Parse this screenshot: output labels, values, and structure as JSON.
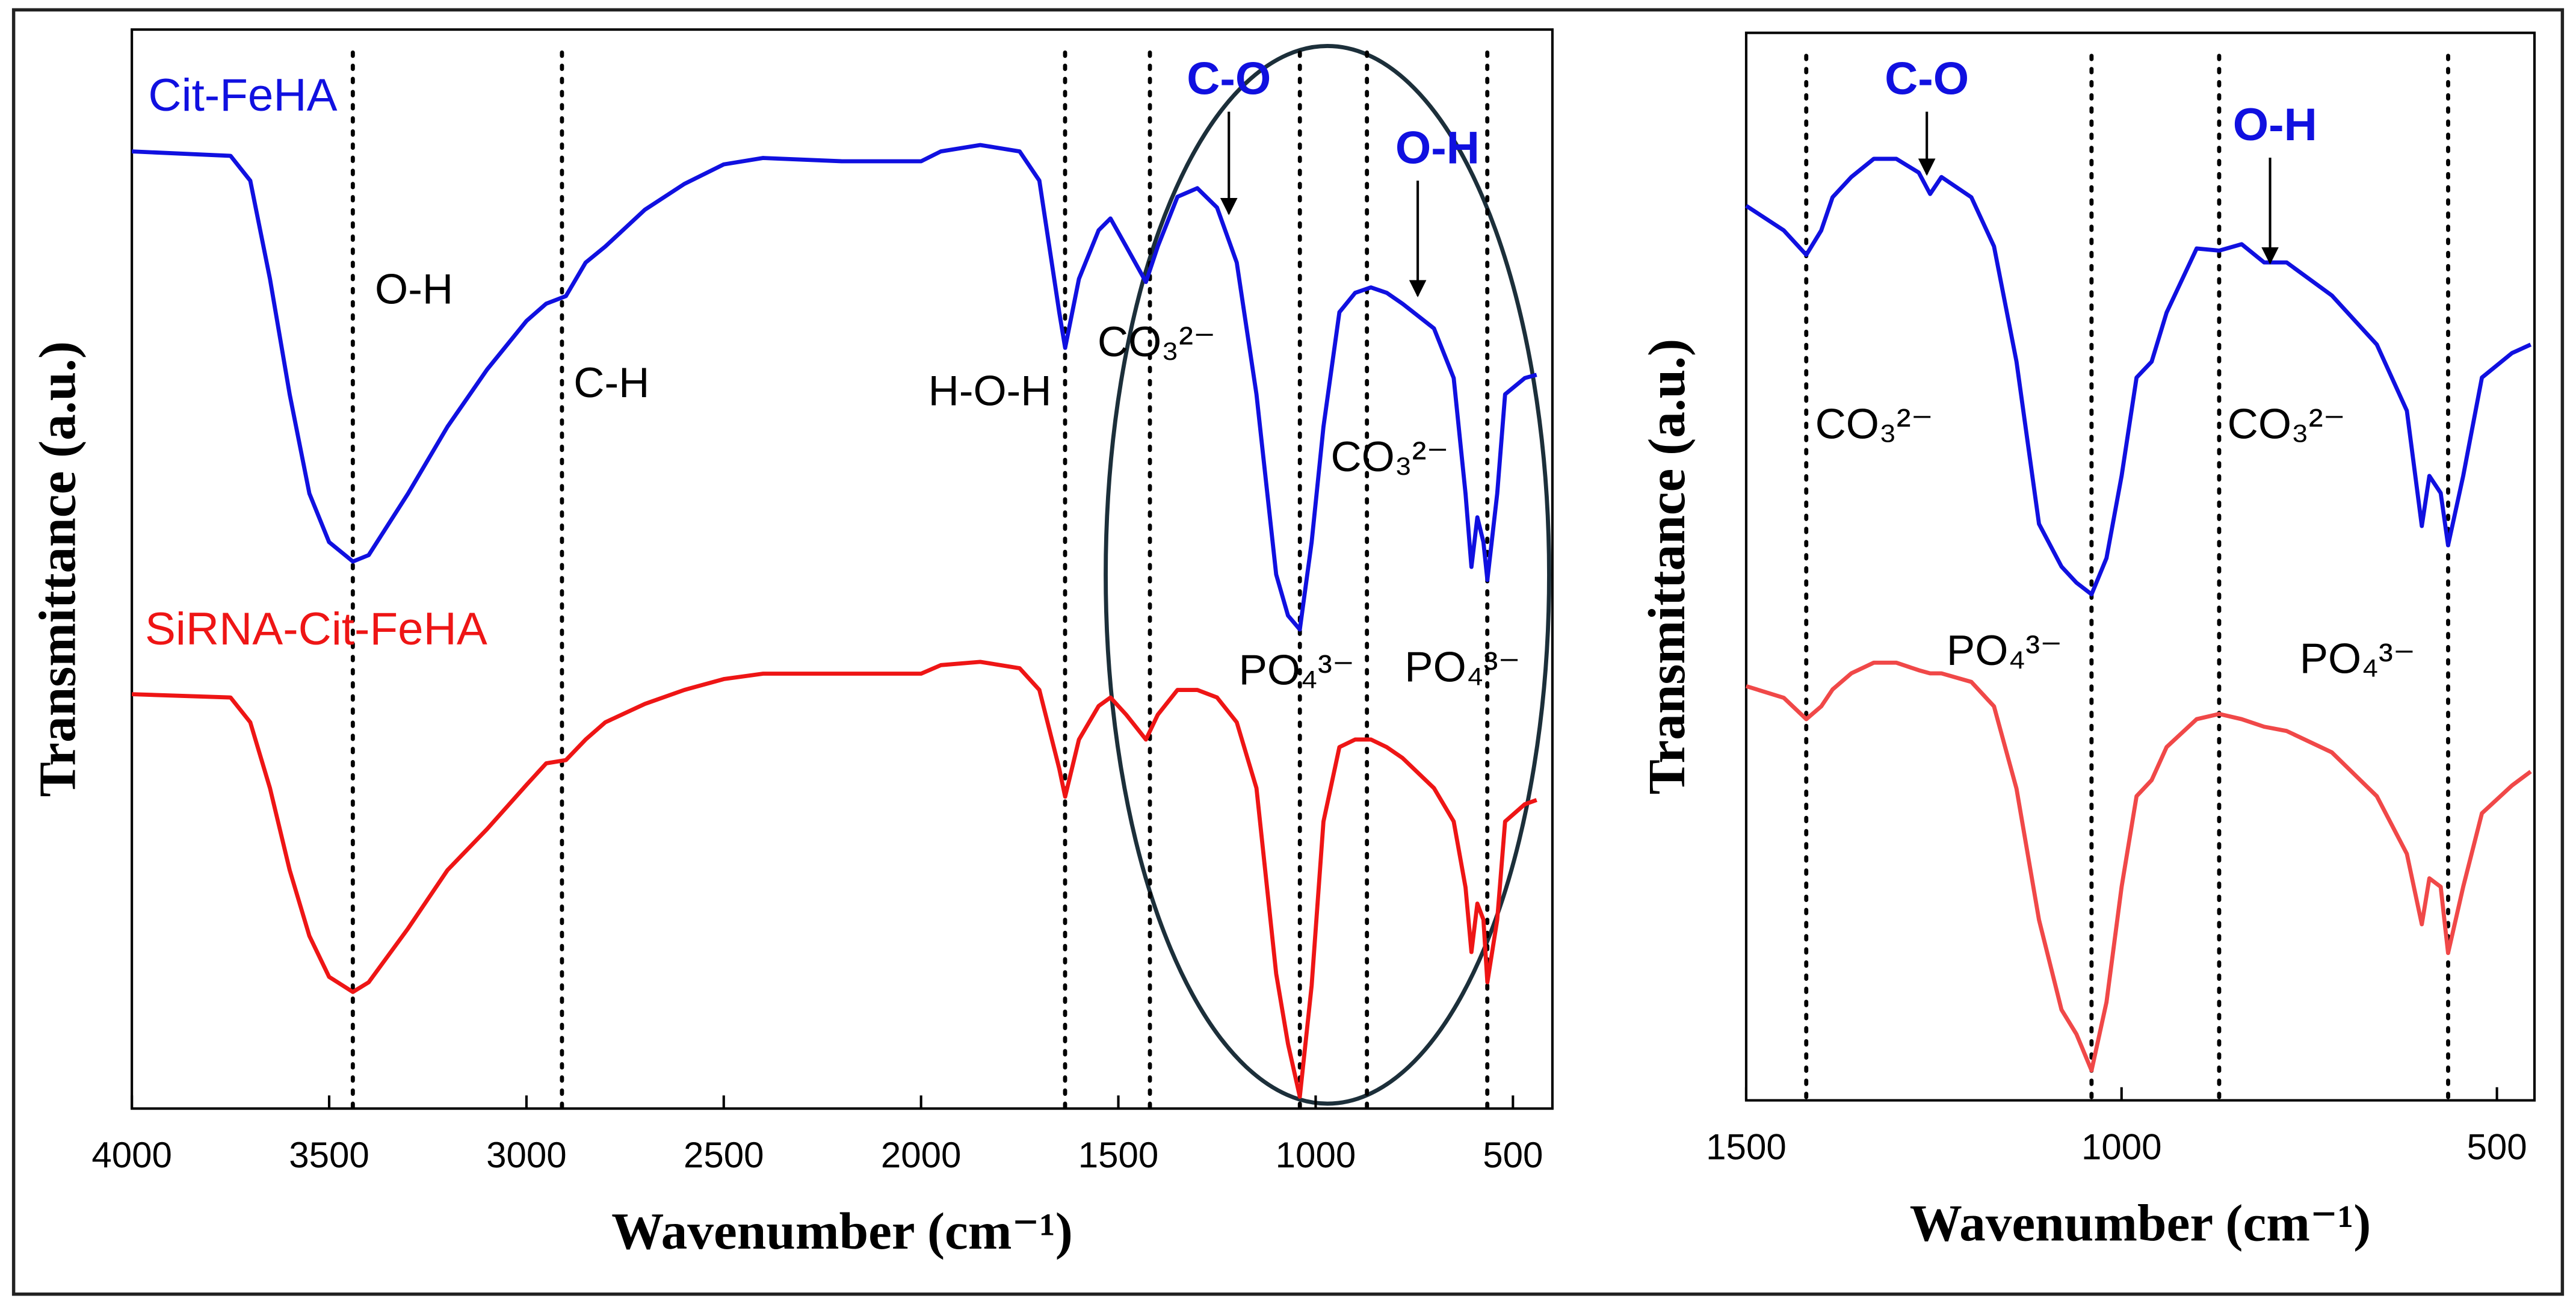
{
  "chart_data": [
    {
      "type": "line",
      "ylabel": "Transmittance (a.u.)",
      "xlabel": "Wavenumber (cm⁻¹)",
      "xlim": [
        4000,
        400
      ],
      "ylim": [
        0,
        100
      ],
      "xticks": [
        4000,
        3500,
        3000,
        2500,
        2000,
        1500,
        1000,
        500
      ],
      "vlines": [
        3440,
        2910,
        1635,
        1420,
        1040,
        870,
        565
      ],
      "x": [
        4000,
        3750,
        3700,
        3650,
        3600,
        3550,
        3500,
        3440,
        3400,
        3300,
        3200,
        3100,
        3000,
        2950,
        2900,
        2850,
        2800,
        2700,
        2600,
        2500,
        2400,
        2200,
        2000,
        1950,
        1850,
        1750,
        1700,
        1650,
        1635,
        1600,
        1550,
        1520,
        1480,
        1430,
        1400,
        1350,
        1300,
        1250,
        1200,
        1150,
        1100,
        1070,
        1040,
        1010,
        980,
        940,
        900,
        860,
        820,
        780,
        700,
        650,
        620,
        605,
        590,
        575,
        565,
        540,
        520,
        470,
        440
      ],
      "series": [
        {
          "name": "Cit-FeHA",
          "color": "#1010e0",
          "values": [
            88.7,
            88.3,
            86,
            76.9,
            66.2,
            57,
            52.5,
            50.7,
            51.3,
            57,
            63.2,
            68.5,
            73,
            74.6,
            75.3,
            78.4,
            79.9,
            83.3,
            85.7,
            87.5,
            88.1,
            87.8,
            87.8,
            88.7,
            89.3,
            88.7,
            86,
            73.8,
            70.5,
            76.9,
            81.4,
            82.5,
            79.9,
            76.6,
            79.9,
            84.5,
            85.3,
            83.5,
            78.4,
            66.2,
            49.5,
            45.7,
            44.4,
            52.5,
            63.2,
            73.8,
            75.6,
            76.1,
            75.6,
            74.6,
            72.3,
            67.7,
            57,
            50.2,
            54.8,
            52.5,
            49,
            57,
            66.2,
            67.7,
            68
          ]
        },
        {
          "name": "SiRNA-Cit-FeHA",
          "color": "#ee1515",
          "values": [
            38.4,
            38.1,
            35.8,
            29.7,
            22.1,
            16,
            12.2,
            10.8,
            11.7,
            16.7,
            22.1,
            25.9,
            30,
            32,
            32.3,
            34.2,
            35.8,
            37.5,
            38.8,
            39.8,
            40.3,
            40.3,
            40.3,
            41.1,
            41.4,
            40.8,
            38.8,
            31.5,
            28.9,
            34.2,
            37.3,
            38.1,
            36.5,
            34.2,
            36.5,
            38.8,
            38.8,
            38.1,
            35.8,
            29.7,
            12.5,
            6,
            1.1,
            11.4,
            26.6,
            33.5,
            34.2,
            34.2,
            33.5,
            32.5,
            29.7,
            26.6,
            20.5,
            14.5,
            19,
            17.5,
            11.7,
            17.5,
            26.6,
            28.2,
            28.6
          ]
        }
      ],
      "annotations": [
        {
          "text": "O-H",
          "color": "#000000"
        },
        {
          "text": "C-H",
          "color": "#000000"
        },
        {
          "text": "H-O-H",
          "color": "#000000"
        },
        {
          "text": "CO₃²⁻",
          "color": "#000000"
        },
        {
          "text": "C-O",
          "color": "#1010e0"
        },
        {
          "text": "O-H",
          "color": "#1010e0"
        },
        {
          "text": "CO₃²⁻",
          "color": "#000000"
        },
        {
          "text": "PO₄³⁻",
          "color": "#000000"
        },
        {
          "text": "PO₄³⁻",
          "color": "#000000"
        }
      ]
    },
    {
      "type": "line",
      "ylabel": "Transmittance (a.u.)",
      "xlabel": "Wavenumber (cm⁻¹)",
      "xlim": [
        1500,
        450
      ],
      "ylim": [
        0,
        100
      ],
      "xticks": [
        1500,
        1000,
        500
      ],
      "vlines": [
        1420,
        1040,
        870,
        565
      ],
      "x": [
        1500,
        1450,
        1420,
        1400,
        1385,
        1360,
        1330,
        1300,
        1270,
        1255,
        1240,
        1200,
        1170,
        1140,
        1110,
        1080,
        1060,
        1040,
        1020,
        1000,
        980,
        960,
        940,
        900,
        870,
        840,
        810,
        780,
        720,
        660,
        620,
        600,
        590,
        575,
        565,
        545,
        520,
        480,
        455
      ],
      "series": [
        {
          "color": "#1010e0",
          "values": [
            83.8,
            81.5,
            79.2,
            81.5,
            84.6,
            86.5,
            88.2,
            88.2,
            86.9,
            84.9,
            86.5,
            84.6,
            80,
            69.2,
            54,
            50,
            48.5,
            47.4,
            50.8,
            58.5,
            67.7,
            69.2,
            73.8,
            79.8,
            79.6,
            80.2,
            78.5,
            78.5,
            75.4,
            70.8,
            64.6,
            53.8,
            58.5,
            56.9,
            52,
            58.5,
            67.7,
            70,
            70.8
          ]
        },
        {
          "color": "#f04848",
          "values": [
            38.8,
            37.7,
            35.7,
            36.9,
            38.5,
            40,
            41,
            41,
            40.3,
            40,
            40,
            39.2,
            36.9,
            29.2,
            16.9,
            8.5,
            6.2,
            2.8,
            9.2,
            20,
            28.5,
            30,
            33.1,
            35.7,
            36.2,
            35.7,
            35,
            34.6,
            32.6,
            28.5,
            23.1,
            16.5,
            20.8,
            20,
            13.8,
            20,
            26.9,
            29.5,
            30.8
          ]
        }
      ],
      "annotations": [
        {
          "text": "C-O",
          "color": "#1010e0"
        },
        {
          "text": "O-H",
          "color": "#1010e0"
        },
        {
          "text": "CO₃²⁻",
          "color": "#000000"
        },
        {
          "text": "CO₃²⁻",
          "color": "#000000"
        },
        {
          "text": "PO₄³⁻",
          "color": "#000000"
        },
        {
          "text": "PO₄³⁻",
          "color": "#000000"
        }
      ]
    }
  ]
}
